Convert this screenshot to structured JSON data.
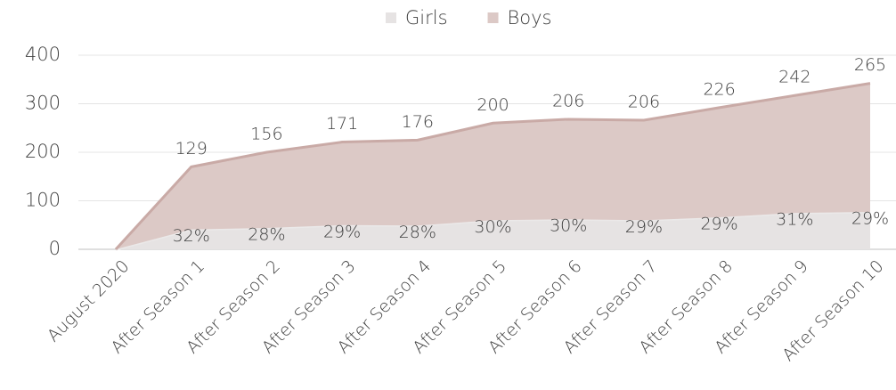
{
  "chart_data": {
    "type": "stacked_area",
    "categories": [
      "August 2020",
      "After Season 1",
      "After Season 2",
      "After Season 3",
      "After Season 4",
      "After Season 5",
      "After Season 6",
      "After Season 7",
      "After Season 8",
      "After Season 9",
      "After Season 10"
    ],
    "series": [
      {
        "name": "Girls",
        "color": "#e6e3e3",
        "line_color": "#ebe9e9",
        "values": [
          0,
          41,
          44,
          50,
          49,
          60,
          62,
          60,
          66,
          75,
          77
        ],
        "data_labels": [
          null,
          "32%",
          "28%",
          "29%",
          "28%",
          "30%",
          "30%",
          "29%",
          "29%",
          "31%",
          "29%"
        ]
      },
      {
        "name": "Boys",
        "color": "#dcc9c6",
        "line_color": "#c9aaa6",
        "values": [
          0,
          129,
          156,
          171,
          176,
          200,
          206,
          206,
          226,
          242,
          265
        ],
        "value_labels": [
          null,
          "129",
          "156",
          "171",
          "176",
          "200",
          "206",
          "206",
          "226",
          "242",
          "265"
        ]
      }
    ],
    "ylim": [
      0,
      400
    ],
    "yticks": [
      0,
      100,
      200,
      300,
      400
    ],
    "grid": true,
    "legend": "top"
  }
}
